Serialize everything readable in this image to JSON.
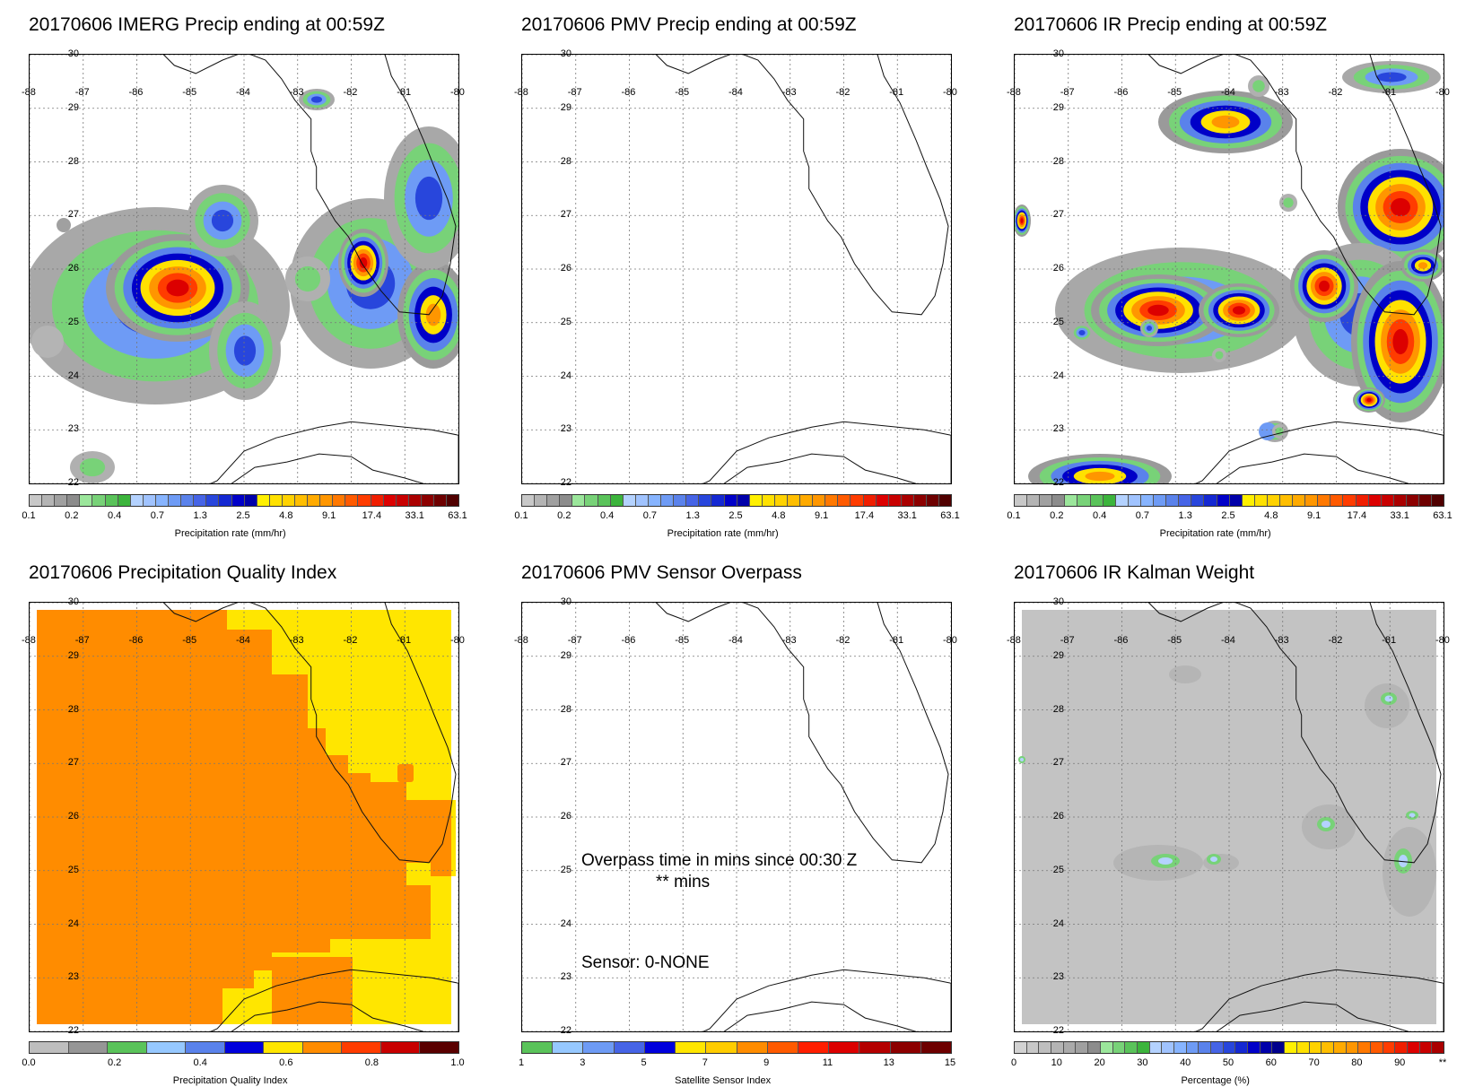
{
  "panels": [
    {
      "title": "20170606 IMERG Precip ending at 00:59Z",
      "kind": "precip",
      "colorbar": {
        "title": "Precipitation rate (mm/hr)",
        "labels": [
          "0.1",
          "0.2",
          "0.4",
          "0.7",
          "1.3",
          "2.5",
          "4.8",
          "9.1",
          "17.4",
          "33.1",
          "63.1"
        ]
      }
    },
    {
      "title": "20170606 PMV Precip ending at 00:59Z",
      "kind": "empty",
      "colorbar": {
        "title": "Precipitation rate (mm/hr)",
        "labels": [
          "0.1",
          "0.2",
          "0.4",
          "0.7",
          "1.3",
          "2.5",
          "4.8",
          "9.1",
          "17.4",
          "33.1",
          "63.1"
        ]
      }
    },
    {
      "title": "20170606 IR Precip ending at 00:59Z",
      "kind": "precip",
      "colorbar": {
        "title": "Precipitation rate (mm/hr)",
        "labels": [
          "0.1",
          "0.2",
          "0.4",
          "0.7",
          "1.3",
          "2.5",
          "4.8",
          "9.1",
          "17.4",
          "33.1",
          "63.1"
        ]
      }
    },
    {
      "title": "20170606 Precipitation Quality Index",
      "kind": "quality",
      "colorbar": {
        "title": "Precipitation Quality Index",
        "labels": [
          "0.0",
          "0.2",
          "0.4",
          "0.6",
          "0.8",
          "1.0"
        ]
      }
    },
    {
      "title": "20170606 PMV Sensor Overpass",
      "kind": "sensor",
      "overpass_text": "Overpass time in mins since 00:30 Z",
      "overpass_value": "** mins",
      "sensor_text": "Sensor:   0-NONE",
      "colorbar": {
        "title": "Satellite Sensor Index",
        "labels": [
          "1",
          "3",
          "5",
          "7",
          "9",
          "11",
          "13",
          "15"
        ]
      }
    },
    {
      "title": "20170606 IR Kalman Weight",
      "kind": "kalman",
      "colorbar": {
        "title": "Percentage (%)",
        "labels": [
          "0",
          "10",
          "20",
          "30",
          "40",
          "50",
          "60",
          "70",
          "80",
          "90",
          "**"
        ]
      }
    }
  ],
  "axes": {
    "lon_labels": [
      "-88",
      "-87",
      "-86",
      "-85",
      "-84",
      "-83",
      "-82",
      "-81",
      "-80"
    ],
    "lat_labels": [
      "30",
      "29",
      "28",
      "27",
      "26",
      "25",
      "24",
      "23",
      "22"
    ]
  },
  "colors": {
    "precip_scale": [
      "#c8c8c8",
      "#b4b4b4",
      "#a0a0a0",
      "#8c8c8c",
      "#9be69b",
      "#78d278",
      "#5ac35a",
      "#3cb43c",
      "#b4d2ff",
      "#a0c3ff",
      "#87b4ff",
      "#6e9bf5",
      "#5a82eb",
      "#4664e6",
      "#2846dc",
      "#1428d2",
      "#0000c8",
      "#0000aa",
      "#fff000",
      "#ffe100",
      "#ffd200",
      "#ffbe00",
      "#ffaa00",
      "#ff9600",
      "#ff7800",
      "#ff5a00",
      "#ff3c00",
      "#f01e00",
      "#dc0000",
      "#c80000",
      "#aa0000",
      "#8c0000",
      "#6e0000",
      "#500000"
    ],
    "quality_scale": [
      "#bebebe",
      "#969696",
      "#5ac35a",
      "#96c8ff",
      "#5a82eb",
      "#0000dc",
      "#ffe600",
      "#ff8c00",
      "#ff3c00",
      "#c80000",
      "#5a0000"
    ],
    "sensor_scale": [
      "#5ac35a",
      "#96c8ff",
      "#6e9bf5",
      "#4664e6",
      "#0000dc",
      "#ffe600",
      "#ffcc00",
      "#ff8c00",
      "#ff5a00",
      "#ff1e00",
      "#dc0000",
      "#b40000",
      "#8c0000",
      "#6e0000"
    ],
    "kalman_scale": [
      "#d2d2d2",
      "#c8c8c8",
      "#bebebe",
      "#b4b4b4",
      "#aaaaaa",
      "#a0a0a0",
      "#8c8c8c",
      "#9be69b",
      "#78d278",
      "#5ac35a",
      "#3cb43c",
      "#b4d2ff",
      "#a0c3ff",
      "#87b4ff",
      "#6e9bf5",
      "#5a82eb",
      "#4664e6",
      "#2846dc",
      "#1428d2",
      "#0000c8",
      "#0000aa",
      "#00008c",
      "#fff000",
      "#ffe100",
      "#ffd200",
      "#ffbe00",
      "#ffaa00",
      "#ff9600",
      "#ff7800",
      "#ff5a00",
      "#ff3c00",
      "#f01e00",
      "#dc0000",
      "#c80000",
      "#aa0000"
    ],
    "quality_orange": "#ff8c00",
    "quality_yellow": "#ffe600",
    "kalman_gray": "#c3c3c3"
  }
}
